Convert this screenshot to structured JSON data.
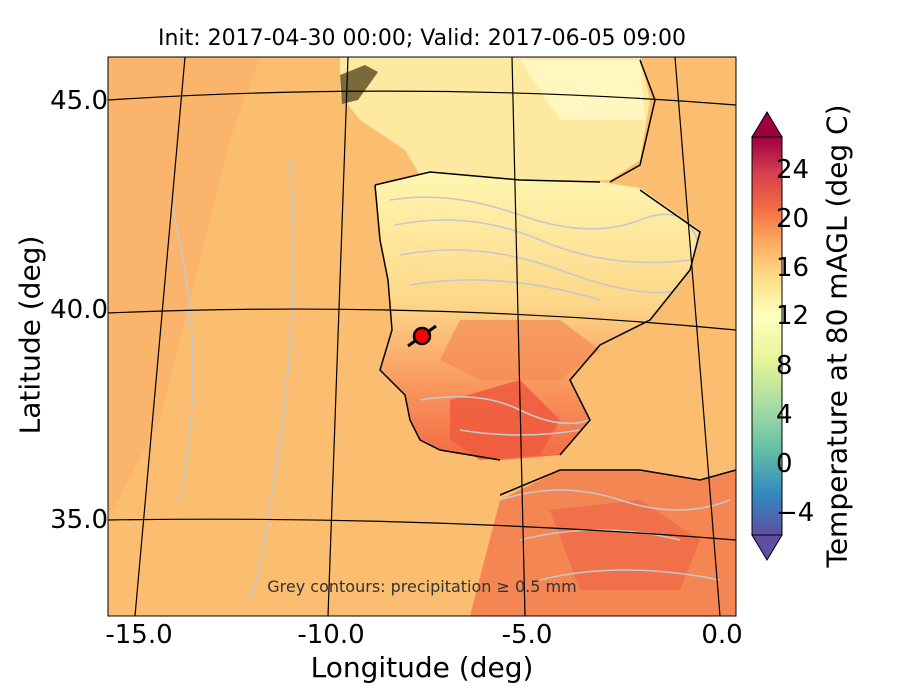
{
  "title": "Init: 2017-04-30 00:00; Valid: 2017-06-05 09:00",
  "annotation": "Grey contours: precipitation ≥ 0.5 mm",
  "axes": {
    "xlabel": "Longitude (deg)",
    "ylabel": "Latitude (deg)",
    "xticks": [
      "-15.0",
      "-10.0",
      "-5.0",
      "0.0"
    ],
    "yticks": [
      "45.0",
      "40.0",
      "35.0"
    ]
  },
  "colorbar": {
    "label": "Temperature at 80 mAGL (deg C)",
    "ticks": [
      "24",
      "20",
      "16",
      "12",
      "8",
      "4",
      "0",
      "−4"
    ],
    "range": [
      -8,
      28
    ],
    "colors": [
      "#5e4fa2",
      "#3288bd",
      "#66c2a5",
      "#abdda4",
      "#e6f598",
      "#ffffbf",
      "#fee08b",
      "#fdae61",
      "#f46d43",
      "#d53e4f",
      "#9e0142"
    ]
  },
  "marker": {
    "lon": -7.6,
    "lat": 39.4,
    "color": "#ff0000"
  },
  "colors": {
    "ocean": "#fbb96b",
    "land_north": "#fde89a",
    "land_south": "#f57a4e",
    "precip_contour": "#c8c8c8",
    "coast": "#000000"
  }
}
